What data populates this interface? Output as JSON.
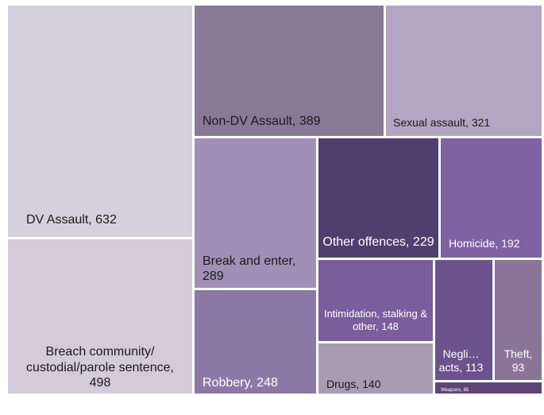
{
  "chart_data": {
    "type": "treemap",
    "items": [
      {
        "label": "DV Assault, 632",
        "category": "DV Assault",
        "value": 632,
        "color": "#d5d0dd",
        "text_color": "#1a1a1a"
      },
      {
        "label": "Breach community/ custodial/parole sentence, 498",
        "category": "Breach community/ custodial/parole sentence",
        "value": 498,
        "color": "#d3cbd9",
        "text_color": "#1a1a1a"
      },
      {
        "label": "Non-DV Assault, 389",
        "category": "Non-DV Assault",
        "value": 389,
        "color": "#8a7897",
        "text_color": "#1a1a1a"
      },
      {
        "label": "Sexual assault, 321",
        "category": "Sexual assault",
        "value": 321,
        "color": "#b3a6c2",
        "text_color": "#1a1a1a"
      },
      {
        "label": "Break and enter, 289",
        "category": "Break and enter",
        "value": 289,
        "color": "#a28fb8",
        "text_color": "#1a1a1a"
      },
      {
        "label": "Robbery, 248",
        "category": "Robbery",
        "value": 248,
        "color": "#8c78a5",
        "text_color": "#ffffff"
      },
      {
        "label": "Other offences, 229",
        "category": "Other offences",
        "value": 229,
        "color": "#503f6e",
        "text_color": "#ffffff"
      },
      {
        "label": "Homicide, 192",
        "category": "Homicide",
        "value": 192,
        "color": "#7f62a3",
        "text_color": "#ffffff"
      },
      {
        "label": "Intimidation, stalking & other, 148",
        "category": "Intimidation, stalking & other",
        "value": 148,
        "color": "#7a5d9c",
        "text_color": "#ffffff"
      },
      {
        "label": "Drugs, 140",
        "category": "Drugs",
        "value": 140,
        "color": "#a89cb3",
        "text_color": "#1a1a1a"
      },
      {
        "label": "Negli… acts, 113",
        "category": "Negli… acts",
        "value": 113,
        "color": "#6c528d",
        "text_color": "#ffffff"
      },
      {
        "label": "Theft, 93",
        "category": "Theft",
        "value": 93,
        "color": "#8a7498",
        "text_color": "#ffffff"
      },
      {
        "label": "Weapons, 65",
        "category": "Weapons",
        "value": 65,
        "color": "#5e4577",
        "text_color": "#ffffff"
      }
    ]
  }
}
